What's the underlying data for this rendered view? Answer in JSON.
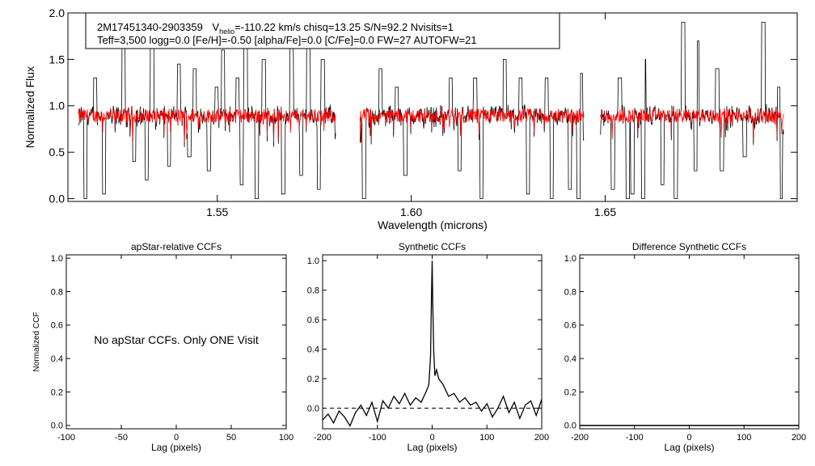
{
  "header": {
    "star_id": "2M17451340-2903359",
    "vhelio_prefix": "V",
    "vhelio_sub": "helio",
    "vhelio_rest": "=-110.22 km/s  chisq=13.25  S/N=92.2  Nvisits=1",
    "params": "Teff=3,500 logg=0.0 [Fe/H]=-0.50 [alpha/Fe]=0.0 [C/Fe]=0.0 FW=27 AUTOFW=21"
  },
  "colors": {
    "observed": "#000000",
    "model": "#ff0000",
    "axis": "#000000"
  },
  "chart_data": [
    {
      "id": "spectrum",
      "type": "line",
      "xlabel": "Wavelength (microns)",
      "ylabel": "Normalized Flux",
      "xlim": [
        1.5115,
        1.6995
      ],
      "ylim": [
        -0.03,
        2.0
      ],
      "xticks": [
        1.55,
        1.6,
        1.65
      ],
      "xtick_labels": [
        "1.55",
        "1.60",
        "1.65"
      ],
      "yticks": [
        0.0,
        0.5,
        1.0,
        1.5,
        2.0
      ],
      "ytick_labels": [
        "0.0",
        "0.5",
        "1.0",
        "1.5",
        "2.0"
      ],
      "segments": [
        [
          1.5142,
          1.5805
        ],
        [
          1.5868,
          1.6445
        ],
        [
          1.6488,
          1.696
        ]
      ],
      "series": [
        {
          "name": "observed",
          "baseline": 0.9,
          "noise": 0.08
        },
        {
          "name": "model",
          "baseline": 0.9,
          "noise": 0.07
        }
      ],
      "emission_lines": [
        [
          1.5185,
          1.3
        ],
        [
          1.5258,
          1.8
        ],
        [
          1.5332,
          1.9
        ],
        [
          1.5401,
          1.45
        ],
        [
          1.5442,
          1.4
        ],
        [
          1.5498,
          1.2
        ],
        [
          1.5515,
          1.6
        ],
        [
          1.5552,
          1.3
        ],
        [
          1.5573,
          1.9
        ],
        [
          1.562,
          1.5
        ],
        [
          1.5692,
          1.7
        ],
        [
          1.5735,
          1.9
        ],
        [
          1.5772,
          1.5
        ],
        [
          1.5921,
          1.4
        ],
        [
          1.5963,
          1.2
        ],
        [
          1.6102,
          1.3
        ],
        [
          1.6165,
          1.3
        ],
        [
          1.6241,
          1.5
        ],
        [
          1.6282,
          1.3
        ],
        [
          1.6349,
          1.3
        ],
        [
          1.644,
          1.35
        ],
        [
          1.6538,
          1.3
        ],
        [
          1.6601,
          1.5
        ],
        [
          1.6701,
          1.9
        ],
        [
          1.6738,
          1.7
        ],
        [
          1.6789,
          1.4
        ],
        [
          1.6908,
          1.9
        ],
        [
          1.6948,
          1.2
        ]
      ],
      "absorption_lines": [
        [
          1.516,
          0.0
        ],
        [
          1.5208,
          0.05
        ],
        [
          1.5286,
          0.4
        ],
        [
          1.5318,
          0.2
        ],
        [
          1.5376,
          0.35
        ],
        [
          1.5428,
          0.45
        ],
        [
          1.5478,
          0.3
        ],
        [
          1.5563,
          0.15
        ],
        [
          1.5602,
          0.0
        ],
        [
          1.567,
          0.05
        ],
        [
          1.5716,
          0.25
        ],
        [
          1.5762,
          0.1
        ],
        [
          1.5878,
          0.0
        ],
        [
          1.5985,
          0.25
        ],
        [
          1.6125,
          0.3
        ],
        [
          1.6181,
          0.0
        ],
        [
          1.6301,
          0.05
        ],
        [
          1.6362,
          0.0
        ],
        [
          1.6409,
          0.1
        ],
        [
          1.6431,
          0.0
        ],
        [
          1.652,
          0.1
        ],
        [
          1.6558,
          0.0
        ],
        [
          1.657,
          0.05
        ],
        [
          1.6598,
          0.0
        ],
        [
          1.6648,
          0.15
        ],
        [
          1.6682,
          0.0
        ],
        [
          1.6733,
          0.3
        ],
        [
          1.6801,
          0.3
        ],
        [
          1.686,
          0.45
        ],
        [
          1.6955,
          0.0
        ]
      ]
    },
    {
      "id": "apstar",
      "type": "line",
      "title": "apStar-relative CCFs",
      "xlabel": "Lag (pixels)",
      "ylabel": "Normalized CCF",
      "xlim": [
        -100,
        100
      ],
      "ylim": [
        -0.02,
        1.02
      ],
      "xticks": [
        -100,
        -50,
        0,
        50,
        100
      ],
      "xtick_labels": [
        "-100",
        "-50",
        "0",
        "50",
        "100"
      ],
      "yticks": [
        0.0,
        0.2,
        0.4,
        0.6,
        0.8,
        1.0
      ],
      "ytick_labels": [
        "0.0",
        "0.2",
        "0.4",
        "0.6",
        "0.8",
        "1.0"
      ],
      "series": [],
      "message": "No apStar CCFs.  Only ONE Visit"
    },
    {
      "id": "synthetic",
      "type": "line",
      "title": "Synthetic CCFs",
      "xlabel": "Lag (pixels)",
      "xlim": [
        -200,
        200
      ],
      "ylim": [
        -0.14,
        1.04
      ],
      "xticks": [
        -200,
        -100,
        0,
        100,
        200
      ],
      "xtick_labels": [
        "-200",
        "-100",
        "0",
        "100",
        "200"
      ],
      "yticks": [
        0.0,
        0.2,
        0.4,
        0.6,
        0.8,
        1.0
      ],
      "ytick_labels": [
        "0.0",
        "0.2",
        "0.4",
        "0.6",
        "0.8",
        "1.0"
      ],
      "dashed_zero": true,
      "series": [
        {
          "name": "ccf",
          "x": [
            -200,
            -190,
            -180,
            -170,
            -160,
            -150,
            -140,
            -130,
            -120,
            -110,
            -100,
            -90,
            -80,
            -70,
            -60,
            -50,
            -40,
            -30,
            -20,
            -10,
            -6,
            -3,
            -1,
            0,
            1,
            3,
            5,
            8,
            12,
            20,
            30,
            40,
            50,
            60,
            70,
            80,
            90,
            100,
            110,
            120,
            130,
            140,
            150,
            160,
            170,
            180,
            190,
            200
          ],
          "y": [
            -0.08,
            -0.04,
            -0.1,
            -0.02,
            -0.06,
            -0.12,
            -0.03,
            0.02,
            -0.05,
            0.04,
            -0.09,
            0.05,
            0.0,
            0.08,
            0.03,
            0.1,
            0.02,
            0.07,
            0.04,
            0.12,
            0.16,
            0.35,
            0.8,
            1.0,
            0.72,
            0.38,
            0.22,
            0.26,
            0.2,
            0.16,
            0.08,
            0.1,
            0.04,
            0.07,
            0.02,
            0.04,
            -0.02,
            0.03,
            -0.06,
            0.0,
            0.08,
            -0.03,
            0.04,
            -0.07,
            0.02,
            0.05,
            -0.05,
            0.06
          ]
        }
      ]
    },
    {
      "id": "difference",
      "type": "line",
      "title": "Difference Synthetic CCFs",
      "xlabel": "Lag (pixels)",
      "xlim": [
        -200,
        200
      ],
      "ylim": [
        -0.02,
        1.02
      ],
      "xticks": [
        -200,
        -100,
        0,
        100,
        200
      ],
      "xtick_labels": [
        "-200",
        "-100",
        "0",
        "100",
        "200"
      ],
      "yticks": [
        0.0,
        0.2,
        0.4,
        0.6,
        0.8,
        1.0
      ],
      "ytick_labels": [
        "0.0",
        "0.2",
        "0.4",
        "0.6",
        "0.8",
        "1.0"
      ],
      "series": [
        {
          "name": "difference",
          "x": [
            -200,
            200
          ],
          "y": [
            0.0,
            0.0
          ]
        }
      ]
    }
  ]
}
